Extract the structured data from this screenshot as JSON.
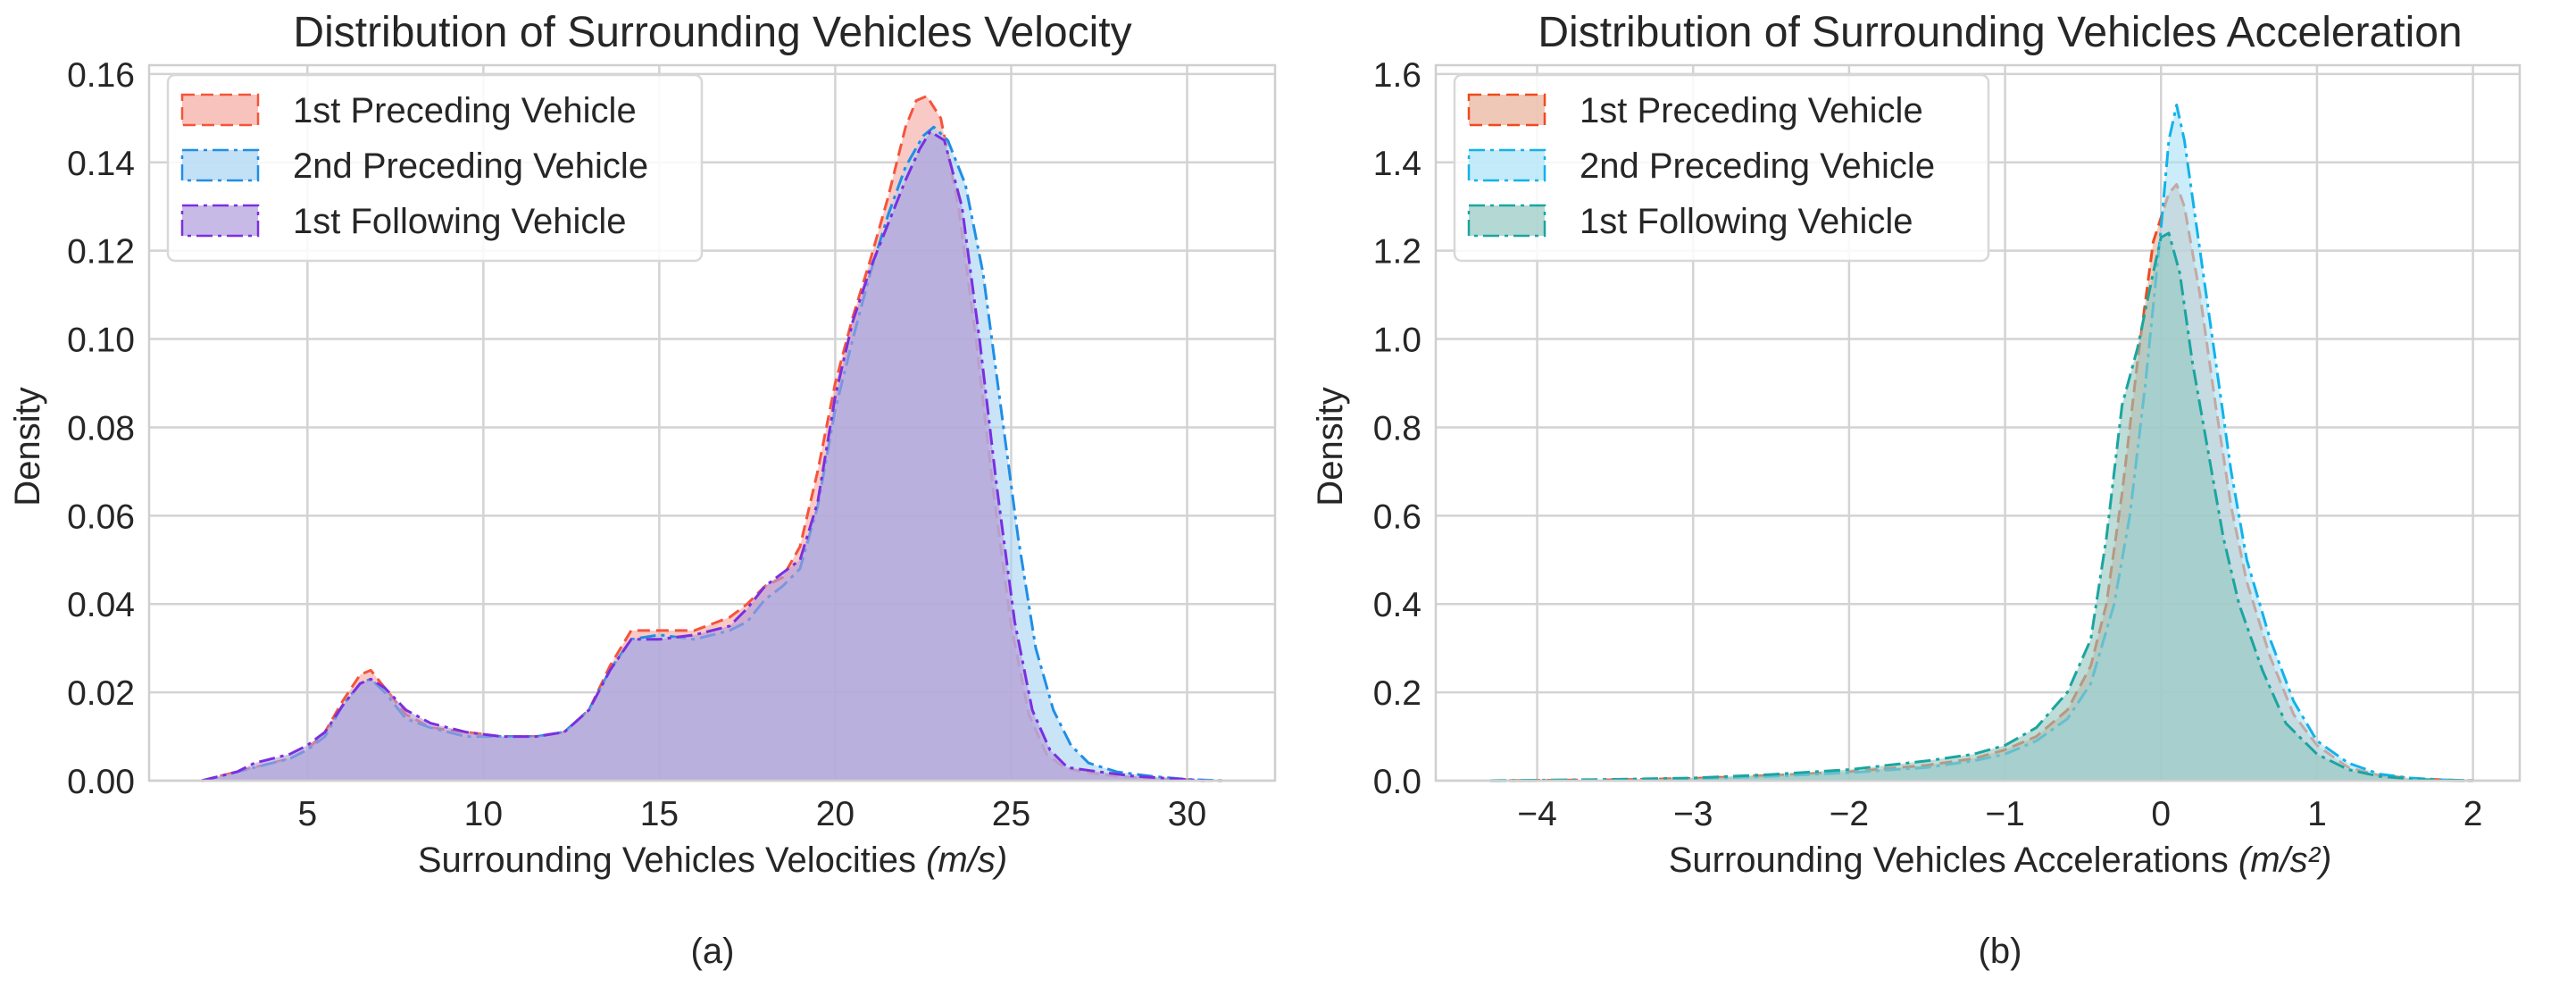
{
  "chart_data": [
    {
      "type": "area",
      "title": "Distribution of Surrounding Vehicles Velocity",
      "xlabel": "Surrounding Vehicles Velocities ",
      "xlabel_unit": "(m/s)",
      "ylabel": "Density",
      "xlim": [
        0.5,
        32.5
      ],
      "ylim": [
        0,
        0.162
      ],
      "xticks": [
        5,
        10,
        15,
        20,
        25,
        30
      ],
      "xtick_labels": [
        "5",
        "10",
        "15",
        "20",
        "25",
        "30"
      ],
      "yticks": [
        0,
        0.02,
        0.04,
        0.06,
        0.08,
        0.1,
        0.12,
        0.14,
        0.16
      ],
      "ytick_labels": [
        "0.00",
        "0.02",
        "0.04",
        "0.06",
        "0.08",
        "0.10",
        "0.12",
        "0.14",
        "0.16"
      ],
      "grid": true,
      "legend_position": "top-left",
      "caption": "(a)",
      "series": [
        {
          "name": "1st Preceding Vehicle",
          "color": "#f5543b",
          "fill": "#f5a9a1",
          "dash": "dashed",
          "x": [
            2.0,
            3.0,
            3.5,
            4.0,
            4.5,
            5.0,
            5.5,
            6.0,
            6.5,
            6.8,
            7.2,
            7.8,
            8.5,
            9.5,
            10.5,
            11.5,
            12.3,
            13.0,
            13.6,
            14.2,
            15.0,
            16.0,
            17.0,
            17.5,
            18.0,
            18.5,
            19.0,
            19.5,
            20.0,
            20.5,
            21.0,
            21.5,
            22.0,
            22.3,
            22.6,
            23.0,
            23.5,
            24.0,
            24.5,
            25.0,
            25.5,
            26.0,
            26.5,
            27.0,
            28.0,
            29.0,
            30.0,
            31.0
          ],
          "values": [
            0.0,
            0.002,
            0.003,
            0.004,
            0.005,
            0.007,
            0.011,
            0.018,
            0.024,
            0.025,
            0.021,
            0.015,
            0.012,
            0.011,
            0.01,
            0.01,
            0.011,
            0.016,
            0.026,
            0.034,
            0.034,
            0.034,
            0.037,
            0.04,
            0.044,
            0.046,
            0.053,
            0.07,
            0.09,
            0.105,
            0.118,
            0.132,
            0.148,
            0.154,
            0.155,
            0.15,
            0.13,
            0.1,
            0.065,
            0.035,
            0.015,
            0.006,
            0.003,
            0.002,
            0.001,
            0.0005,
            0.0002,
            0.0
          ]
        },
        {
          "name": "2nd Preceding Vehicle",
          "color": "#1f8ee6",
          "fill": "#a8d3f2",
          "dash": "dashdot",
          "x": [
            2.0,
            3.0,
            3.5,
            4.0,
            4.5,
            5.0,
            5.5,
            6.0,
            6.5,
            6.8,
            7.2,
            7.8,
            8.5,
            9.5,
            10.5,
            11.5,
            12.3,
            13.0,
            13.6,
            14.2,
            15.0,
            16.0,
            17.0,
            17.5,
            18.0,
            18.5,
            19.0,
            19.5,
            20.0,
            20.5,
            21.0,
            21.5,
            22.0,
            22.5,
            22.8,
            23.2,
            23.7,
            24.2,
            24.7,
            25.2,
            25.7,
            26.2,
            26.7,
            27.2,
            28.0,
            29.0,
            30.0,
            31.0
          ],
          "values": [
            0.0,
            0.002,
            0.003,
            0.004,
            0.005,
            0.007,
            0.01,
            0.017,
            0.022,
            0.023,
            0.02,
            0.014,
            0.012,
            0.01,
            0.01,
            0.01,
            0.011,
            0.016,
            0.025,
            0.032,
            0.033,
            0.032,
            0.034,
            0.036,
            0.041,
            0.044,
            0.048,
            0.062,
            0.084,
            0.1,
            0.115,
            0.128,
            0.139,
            0.146,
            0.148,
            0.145,
            0.135,
            0.115,
            0.085,
            0.055,
            0.03,
            0.016,
            0.008,
            0.004,
            0.002,
            0.001,
            0.0003,
            0.0
          ]
        },
        {
          "name": "1st Following Vehicle",
          "color": "#7b2fe0",
          "fill": "#b19cdc",
          "dash": "dashdot",
          "x": [
            2.0,
            2.5,
            3.0,
            3.5,
            4.0,
            4.5,
            5.0,
            5.5,
            6.0,
            6.5,
            6.8,
            7.2,
            7.8,
            8.5,
            9.5,
            10.5,
            11.5,
            12.3,
            13.0,
            13.6,
            14.2,
            15.0,
            16.0,
            17.0,
            17.5,
            18.0,
            18.5,
            19.0,
            19.5,
            20.0,
            20.5,
            21.0,
            21.5,
            22.0,
            22.4,
            22.7,
            23.1,
            23.6,
            24.1,
            24.6,
            25.1,
            25.6,
            26.1,
            26.6,
            27.5,
            28.5,
            29.5,
            30.5
          ],
          "values": [
            0.0,
            0.001,
            0.002,
            0.004,
            0.005,
            0.006,
            0.008,
            0.011,
            0.017,
            0.022,
            0.023,
            0.021,
            0.016,
            0.013,
            0.011,
            0.01,
            0.01,
            0.011,
            0.016,
            0.025,
            0.032,
            0.032,
            0.033,
            0.035,
            0.039,
            0.044,
            0.047,
            0.05,
            0.063,
            0.087,
            0.104,
            0.116,
            0.126,
            0.136,
            0.143,
            0.147,
            0.145,
            0.13,
            0.1,
            0.066,
            0.036,
            0.016,
            0.007,
            0.003,
            0.002,
            0.001,
            0.0005,
            0.0
          ]
        }
      ]
    },
    {
      "type": "area",
      "title": "Distribution of Surrounding Vehicles Acceleration",
      "xlabel": "Surrounding Vehicles Accelerations ",
      "xlabel_unit": "(m/s²)",
      "ylabel": "Density",
      "xlim": [
        -4.65,
        2.3
      ],
      "ylim": [
        0,
        1.62
      ],
      "xticks": [
        -4,
        -3,
        -2,
        -1,
        0,
        1,
        2
      ],
      "xtick_labels": [
        "−4",
        "−3",
        "−2",
        "−1",
        "0",
        "1",
        "2"
      ],
      "yticks": [
        0,
        0.2,
        0.4,
        0.6,
        0.8,
        1.0,
        1.2,
        1.4,
        1.6
      ],
      "ytick_labels": [
        "0.0",
        "0.2",
        "0.4",
        "0.6",
        "0.8",
        "1.0",
        "1.2",
        "1.4",
        "1.6"
      ],
      "grid": true,
      "legend_position": "top-left",
      "caption": "(b)",
      "series": [
        {
          "name": "1st Preceding Vehicle",
          "color": "#f04a1e",
          "fill": "#e8b09a",
          "dash": "dashed",
          "x": [
            -4.3,
            -3.5,
            -3.0,
            -2.5,
            -2.0,
            -1.5,
            -1.2,
            -1.0,
            -0.8,
            -0.6,
            -0.45,
            -0.35,
            -0.25,
            -0.15,
            -0.05,
            0.05,
            0.1,
            0.15,
            0.25,
            0.35,
            0.45,
            0.55,
            0.7,
            0.85,
            1.0,
            1.2,
            1.4,
            1.6,
            1.8,
            2.0
          ],
          "values": [
            0.0,
            0.002,
            0.005,
            0.012,
            0.02,
            0.035,
            0.05,
            0.07,
            0.1,
            0.16,
            0.26,
            0.4,
            0.65,
            0.95,
            1.22,
            1.33,
            1.35,
            1.3,
            1.1,
            0.85,
            0.62,
            0.45,
            0.28,
            0.15,
            0.08,
            0.03,
            0.012,
            0.005,
            0.002,
            0.0
          ]
        },
        {
          "name": "2nd Preceding Vehicle",
          "color": "#12b2ea",
          "fill": "#a9e2f6",
          "dash": "dashdot",
          "x": [
            -4.3,
            -3.5,
            -3.0,
            -2.5,
            -2.0,
            -1.5,
            -1.2,
            -1.0,
            -0.8,
            -0.6,
            -0.45,
            -0.3,
            -0.2,
            -0.1,
            0.0,
            0.05,
            0.1,
            0.15,
            0.25,
            0.35,
            0.45,
            0.55,
            0.7,
            0.85,
            1.0,
            1.2,
            1.4,
            1.6,
            1.8,
            2.0
          ],
          "values": [
            0.0,
            0.002,
            0.004,
            0.01,
            0.018,
            0.03,
            0.045,
            0.06,
            0.09,
            0.14,
            0.22,
            0.4,
            0.6,
            0.9,
            1.25,
            1.45,
            1.53,
            1.45,
            1.2,
            0.95,
            0.7,
            0.5,
            0.32,
            0.18,
            0.09,
            0.04,
            0.015,
            0.006,
            0.002,
            0.0
          ]
        },
        {
          "name": "1st Following Vehicle",
          "color": "#1aa5a0",
          "fill": "#94c8c0",
          "dash": "dashdot",
          "x": [
            -4.3,
            -3.5,
            -3.0,
            -2.5,
            -2.0,
            -1.5,
            -1.2,
            -1.0,
            -0.8,
            -0.6,
            -0.45,
            -0.35,
            -0.25,
            -0.15,
            -0.05,
            0.0,
            0.05,
            0.12,
            0.2,
            0.3,
            0.4,
            0.5,
            0.65,
            0.8,
            1.0,
            1.2,
            1.4,
            1.6,
            1.8,
            2.0
          ],
          "values": [
            0.0,
            0.003,
            0.006,
            0.014,
            0.025,
            0.045,
            0.06,
            0.08,
            0.12,
            0.2,
            0.32,
            0.55,
            0.85,
            0.98,
            1.15,
            1.23,
            1.24,
            1.15,
            0.95,
            0.75,
            0.55,
            0.4,
            0.25,
            0.13,
            0.06,
            0.025,
            0.01,
            0.004,
            0.001,
            0.0
          ]
        }
      ]
    }
  ]
}
